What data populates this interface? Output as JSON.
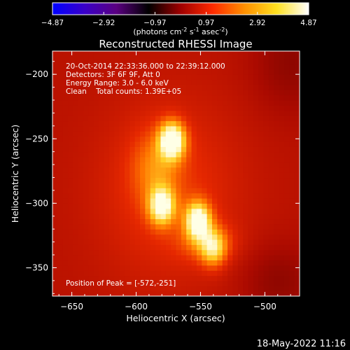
{
  "colorbar": {
    "ticks": [
      "-4.87",
      "-2.92",
      "-0.97",
      "0.97",
      "2.92",
      "4.87"
    ],
    "units_prefix": "(photons cm",
    "units_exp1": "-2",
    "units_mid": " s",
    "units_exp2": "-1",
    "units_mid2": " asec",
    "units_exp3": "-2",
    "units_suffix": ")",
    "colormap": "red-temperature diverging (blue-purple negative, red-yellow-white positive)",
    "colors": [
      "#0000ff",
      "#3a00c8",
      "#5a0080",
      "#000000",
      "#a00000",
      "#ff2a00",
      "#ff9000",
      "#ffe020",
      "#ffffff"
    ]
  },
  "chart_data": {
    "type": "heatmap",
    "title": "Reconstructed RHESSI Image",
    "xlabel": "Heliocentric X (arcsec)",
    "ylabel": "Heliocentric Y (arcsec)",
    "xlim": [
      -665,
      -473
    ],
    "ylim": [
      -372,
      -182
    ],
    "xticks": [
      -650,
      -600,
      -550,
      -500
    ],
    "yticks": [
      -200,
      -250,
      -300,
      -350
    ],
    "xtick_labels": [
      "−650",
      "−600",
      "−550",
      "−500"
    ],
    "ytick_labels": [
      "−200",
      "−250",
      "−300",
      "−350"
    ],
    "sources": [
      {
        "x": -572,
        "y": -251,
        "peak": 1.0
      },
      {
        "x": -580,
        "y": -302,
        "peak": 0.82
      },
      {
        "x": -552,
        "y": -313,
        "peak": 0.92
      },
      {
        "x": -540,
        "y": -335,
        "peak": 0.55
      }
    ],
    "annotations": [
      "20-Oct-2014 22:33:36.000 to 22:39:12.000",
      "Detectors: 3F 6F 9F, Att 0",
      "Energy Range: 3.0 - 6.0 keV",
      "Clean    Total counts: 1.39E+05"
    ],
    "peak_label": "Position of Peak = [-572,-251]"
  },
  "timestamp": "18-May-2022 11:16"
}
